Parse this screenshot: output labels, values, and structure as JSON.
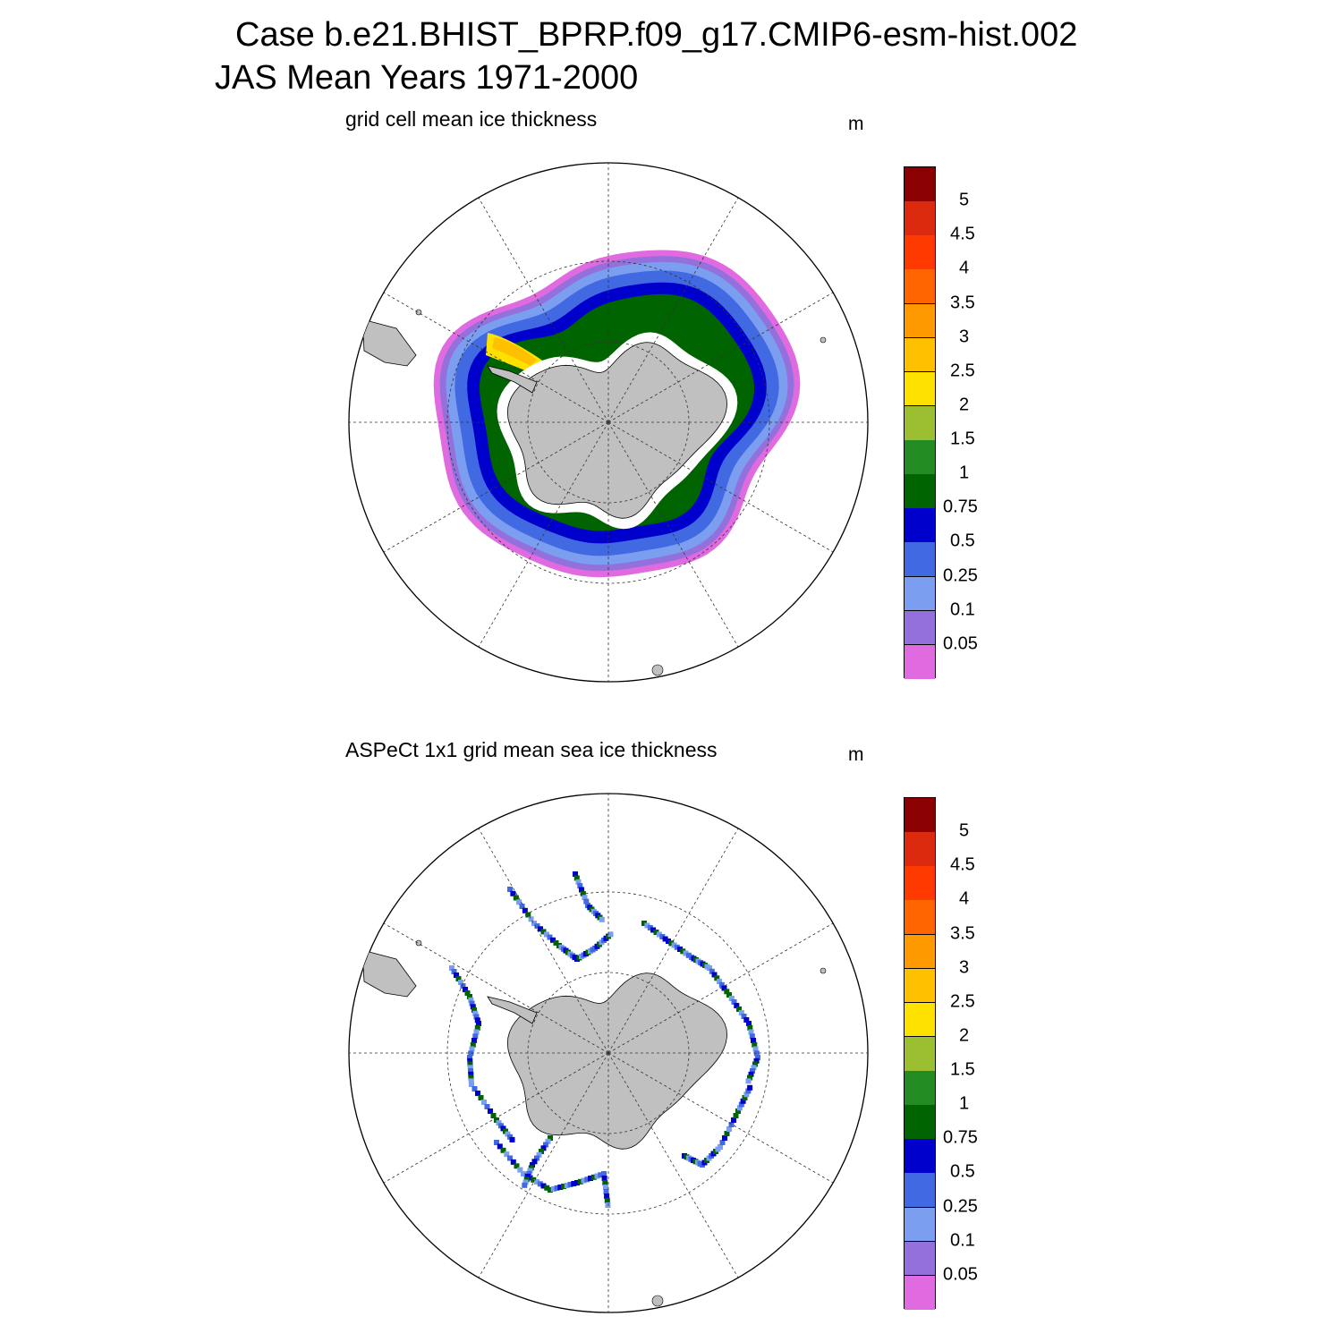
{
  "header": {
    "title_line1": "Case b.e21.BHIST_BPRP.f09_g17.CMIP6-esm-hist.002",
    "title_line2": "JAS Mean   Years 1971-2000"
  },
  "panels": [
    {
      "title": "grid cell mean ice thickness",
      "unit": "m"
    },
    {
      "title": "ASPeCt 1x1 grid mean sea ice thickness",
      "unit": "m"
    }
  ],
  "colorbar": {
    "labels": [
      "5",
      "4.5",
      "4",
      "3.5",
      "3",
      "2.5",
      "2",
      "1.5",
      "1",
      "0.75",
      "0.5",
      "0.25",
      "0.1",
      "0.05"
    ],
    "colors": [
      "#8b0000",
      "#dc2a0e",
      "#ff3a00",
      "#ff6600",
      "#ff9900",
      "#ffc000",
      "#ffe100",
      "#9bbf30",
      "#228b22",
      "#006400",
      "#0000cd",
      "#4169e1",
      "#7b9ef0",
      "#9370db",
      "#e06ae0"
    ]
  },
  "map_colors": {
    "land": "#c0c0c0",
    "ocean": "#ffffff",
    "grid": "#444444"
  }
}
